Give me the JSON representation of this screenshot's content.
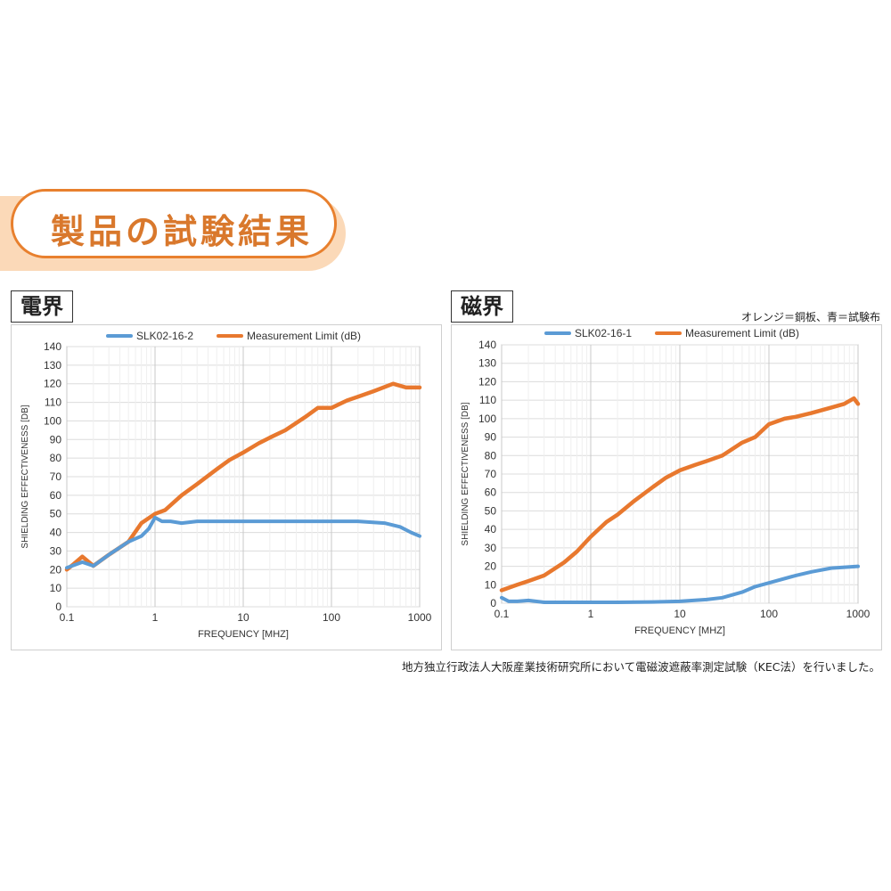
{
  "header": {
    "title": "製品の試験結果"
  },
  "panels": [
    {
      "label": "電界"
    },
    {
      "label": "磁界",
      "note": "オレンジ＝銅板、青＝試験布"
    }
  ],
  "footer": {
    "note": "地方独立行政法人大阪産業技術研究所において電磁波遮蔽率測定試験（KEC法）を行いました。"
  },
  "colors": {
    "orange": "#e8782e",
    "blue": "#5b9bd5",
    "banner_border": "#e8802e",
    "banner_shadow": "#fbd9b8"
  },
  "chart_data": [
    {
      "type": "line",
      "xscale": "log",
      "xlim": [
        0.1,
        1000
      ],
      "ylim": [
        0,
        140
      ],
      "xticks": [
        "0.1",
        "1",
        "10",
        "100",
        "1000"
      ],
      "yticks": [
        "0",
        "10",
        "20",
        "30",
        "40",
        "50",
        "60",
        "70",
        "80",
        "90",
        "100",
        "110",
        "120",
        "130",
        "140"
      ],
      "xlabel": "FREQUENCY [MHZ]",
      "ylabel": "SHIELDING EFFECTIVENESS [DB]",
      "legend_position": "top",
      "grid": true,
      "series": [
        {
          "name": "SLK02-16-2",
          "color": "#5b9bd5",
          "x": [
            0.1,
            0.15,
            0.2,
            0.3,
            0.5,
            0.7,
            0.85,
            1,
            1.2,
            1.5,
            2,
            3,
            5,
            10,
            20,
            50,
            100,
            200,
            400,
            600,
            800,
            1000
          ],
          "y": [
            21,
            24,
            22,
            28,
            35,
            38,
            42,
            48,
            46,
            46,
            45,
            46,
            46,
            46,
            46,
            46,
            46,
            46,
            45,
            43,
            40,
            38
          ]
        },
        {
          "name": "Measurement Limit (dB)",
          "color": "#e8782e",
          "x": [
            0.1,
            0.12,
            0.15,
            0.2,
            0.3,
            0.5,
            0.7,
            1,
            1.3,
            2,
            3,
            5,
            7,
            10,
            15,
            20,
            30,
            50,
            70,
            100,
            150,
            200,
            300,
            500,
            700,
            1000
          ],
          "y": [
            20,
            23,
            27,
            22,
            28,
            35,
            45,
            50,
            52,
            60,
            66,
            74,
            79,
            83,
            88,
            91,
            95,
            102,
            107,
            107,
            111,
            113,
            116,
            120,
            118,
            118
          ]
        }
      ]
    },
    {
      "type": "line",
      "xscale": "log",
      "xlim": [
        0.1,
        1000
      ],
      "ylim": [
        0,
        140
      ],
      "xticks": [
        "0.1",
        "1",
        "10",
        "100",
        "1000"
      ],
      "yticks": [
        "0",
        "10",
        "20",
        "30",
        "40",
        "50",
        "60",
        "70",
        "80",
        "90",
        "100",
        "110",
        "120",
        "130",
        "140"
      ],
      "xlabel": "FREQUENCY [MHZ]",
      "ylabel": "SHIELDING EFFECTIVENESS [DB]",
      "legend_position": "top",
      "grid": true,
      "series": [
        {
          "name": "SLK02-16-1",
          "color": "#5b9bd5",
          "x": [
            0.1,
            0.12,
            0.15,
            0.2,
            0.3,
            0.5,
            1,
            2,
            5,
            10,
            20,
            30,
            50,
            70,
            100,
            200,
            300,
            500,
            1000
          ],
          "y": [
            3,
            1,
            1,
            1.5,
            0.5,
            0.5,
            0.5,
            0.5,
            0.7,
            1,
            2,
            3,
            6,
            9,
            11,
            15,
            17,
            19,
            20
          ]
        },
        {
          "name": "Measurement Limit (dB)",
          "color": "#e8782e",
          "x": [
            0.1,
            0.15,
            0.2,
            0.3,
            0.5,
            0.7,
            1,
            1.5,
            2,
            3,
            5,
            7,
            10,
            15,
            20,
            30,
            50,
            70,
            100,
            150,
            200,
            300,
            500,
            700,
            900,
            1000
          ],
          "y": [
            7,
            10,
            12,
            15,
            22,
            28,
            36,
            44,
            48,
            55,
            63,
            68,
            72,
            75,
            77,
            80,
            87,
            90,
            97,
            100,
            101,
            103,
            106,
            108,
            111,
            108
          ]
        }
      ]
    }
  ]
}
